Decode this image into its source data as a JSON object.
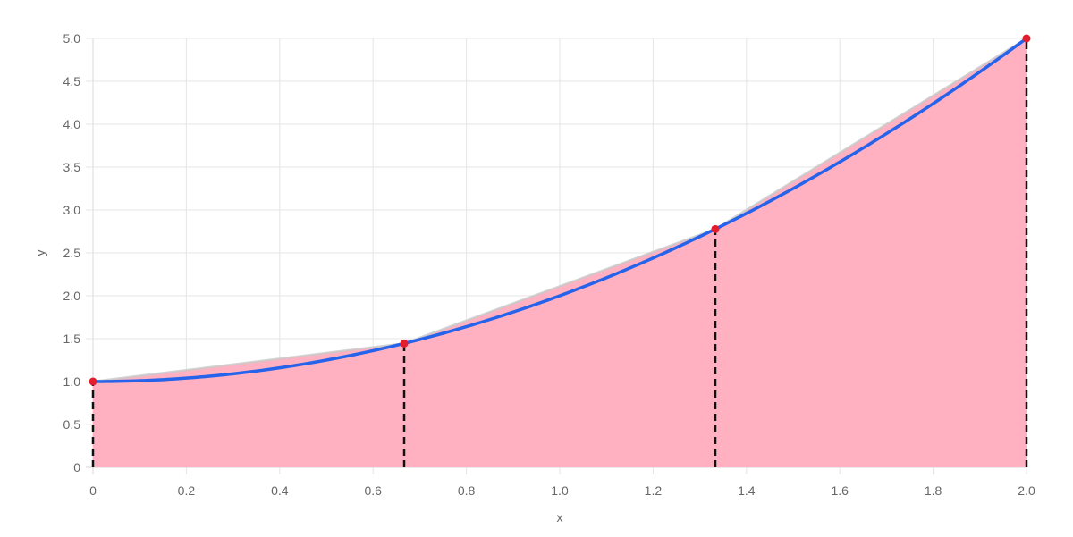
{
  "chart_data": {
    "type": "area",
    "title": "",
    "xlabel": "x",
    "ylabel": "y",
    "xlim": [
      0,
      2
    ],
    "ylim": [
      0,
      5
    ],
    "grid": true,
    "x_ticks": [
      "0",
      "0.2",
      "0.4",
      "0.6",
      "0.8",
      "1.0",
      "1.2",
      "1.4",
      "1.6",
      "1.8",
      "2.0"
    ],
    "y_ticks": [
      "0",
      "0.5",
      "1.0",
      "1.5",
      "2.0",
      "2.5",
      "3.0",
      "3.5",
      "4.0",
      "4.5",
      "5.0"
    ],
    "curve": {
      "function": "y = x^2 + 1",
      "color": "#2563eb"
    },
    "trapezoid_fill": {
      "x": [
        0,
        0.6667,
        1.3333,
        2.0
      ],
      "y": [
        1.0,
        1.4444,
        2.7778,
        5.0
      ],
      "fill_color": "#ffb1c1",
      "edge_color": "#c8c8c8"
    },
    "sample_points": {
      "x": [
        0,
        0.6667,
        1.3333,
        2.0
      ],
      "y": [
        1.0,
        1.4444,
        2.7778,
        5.0
      ],
      "color": "#e11d2e"
    },
    "vertical_lines": {
      "x": [
        0,
        0.6667,
        1.3333,
        2.0
      ],
      "style": "dashed",
      "color": "#111111"
    },
    "colors": {
      "grid": "#e5e5e5",
      "axis": "#d9d9d9",
      "text": "#666666"
    }
  }
}
